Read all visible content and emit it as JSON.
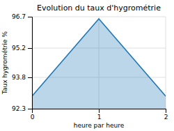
{
  "chart_data": {
    "type": "area",
    "title": "Evolution du taux d'hygrométrie",
    "xlabel": "heure par heure",
    "ylabel": "Taux hygrométrie %",
    "x": [
      0,
      1,
      2
    ],
    "values": [
      92.9,
      96.6,
      92.9
    ],
    "xlim": [
      0,
      2
    ],
    "ylim": [
      92.3,
      96.7
    ],
    "xticks": [
      0,
      1,
      2
    ],
    "yticks": [
      92.3,
      93.8,
      95.2,
      96.7
    ],
    "grid": true
  }
}
